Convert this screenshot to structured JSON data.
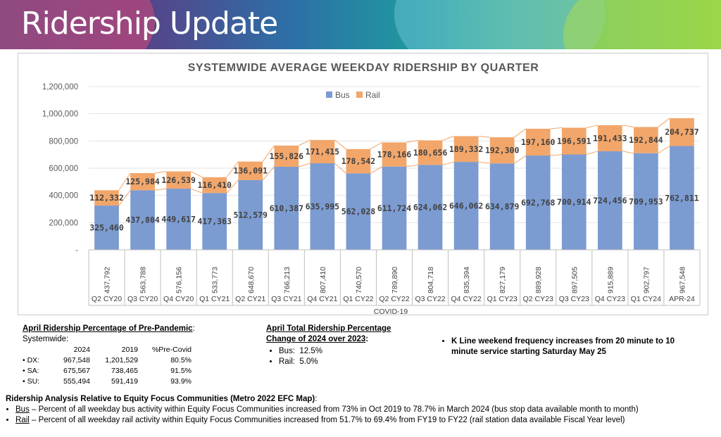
{
  "slide": {
    "title": "Ridership Update"
  },
  "colors": {
    "bus": "#7b9bd1",
    "rail": "#f2a66a",
    "line": "#f2a66a"
  },
  "chart_data": {
    "type": "bar",
    "stacked": true,
    "title": "SYSTEMWIDE AVERAGE WEEKDAY RIDERSHIP BY QUARTER",
    "categories": [
      "Q2 CY20",
      "Q3 CY20",
      "Q4 CY20",
      "Q1 CY21",
      "Q2 CY21",
      "Q3 CY21",
      "Q4 CY21",
      "Q1 CY22",
      "Q2 CY22",
      "Q3 CY22",
      "Q4 CY22",
      "Q1 CY23",
      "Q2 CY23",
      "Q3 CY23",
      "Q4 CY23",
      "Q1 CY24",
      "APR-24"
    ],
    "series": [
      {
        "name": "Bus",
        "values": [
          325460,
          437804,
          449617,
          417363,
          512579,
          610387,
          635995,
          562028,
          611724,
          624062,
          646062,
          634879,
          692768,
          700914,
          724456,
          709953,
          762811
        ],
        "labels": [
          "325,460",
          "437,804",
          "449,617",
          "417,363",
          "512,579",
          "610,387",
          "635,995",
          "562,028",
          "611,724",
          "624,062",
          "646,062",
          "634,879",
          "692,768",
          "700,914",
          "724,456",
          "709,953",
          "762,811"
        ]
      },
      {
        "name": "Rail",
        "values": [
          112332,
          125984,
          126539,
          116410,
          136091,
          155826,
          171415,
          178542,
          178166,
          180656,
          189332,
          192300,
          197160,
          196591,
          191433,
          192844,
          204737
        ],
        "labels": [
          "112,332",
          "125,984",
          "126,539",
          "116,410",
          "136,091",
          "155,826",
          "171,415",
          "178,542",
          "178,166",
          "180,656",
          "189,332",
          "192,300",
          "197,160",
          "196,591",
          "191,433",
          "192,844",
          "204,737"
        ]
      }
    ],
    "totals": [
      "437,792",
      "563,788",
      "576,156",
      "533,773",
      "648,670",
      "766,213",
      "807,410",
      "740,570",
      "789,890",
      "804,718",
      "835,394",
      "827,179",
      "889,928",
      "897,505",
      "915,889",
      "902,797",
      "967,548"
    ],
    "ylim": [
      0,
      1200000
    ],
    "yticks": [
      "-",
      "200,000",
      "400,000",
      "600,000",
      "800,000",
      "1,000,000",
      "1,200,000"
    ],
    "legend": [
      "Bus",
      "Rail"
    ],
    "footnote": "COVID-19"
  },
  "pre_pandemic": {
    "heading": "April Ridership Percentage of Pre-Pandemic",
    "colon": ":",
    "subheading": "Systemwide:",
    "columns": [
      "2024",
      "2019",
      "%Pre-Covid"
    ],
    "rows": [
      {
        "name": "DX:",
        "v2024": "967,548",
        "v2019": "1,201,529",
        "pct": "80.5%"
      },
      {
        "name": "SA:",
        "v2024": "675,567",
        "v2019": "738,465",
        "pct": "91.5%"
      },
      {
        "name": "SU:",
        "v2024": "555,494",
        "v2019": "591,419",
        "pct": "93.9%"
      }
    ]
  },
  "total_change": {
    "heading1": "April Total Ridership Percentage",
    "heading2": "Change of 2024 over 2023",
    "colon": ":",
    "items": [
      {
        "label": "Bus:",
        "value": "12.5%"
      },
      {
        "label": "Rail:",
        "value": "5.0%"
      }
    ]
  },
  "note": {
    "text": "K Line weekend frequency increases from 20 minute to 10 minute service starting Saturday May 25"
  },
  "equity": {
    "heading": "Ridership Analysis Relative to Equity Focus Communities (Metro 2022 EFC Map)",
    "colon": ":",
    "items": [
      {
        "label": "Bus",
        "text": " – Percent of all weekday bus activity within Equity Focus Communities increased from 73% in Oct 2019 to 78.7% in March 2024 (bus stop data available month to month)"
      },
      {
        "label": "Rail",
        "text": " – Percent of all weekday rail activity within Equity Focus Communities increased from 51.7% to 69.4% from FY19 to FY22 (rail station data available Fiscal Year level)"
      }
    ]
  }
}
